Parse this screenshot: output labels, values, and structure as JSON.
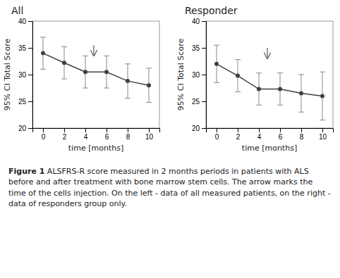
{
  "chart_data": [
    {
      "type": "line",
      "title": "All",
      "x": [
        0,
        2,
        4,
        6,
        8,
        10
      ],
      "series": [
        {
          "values": [
            34.0,
            32.2,
            30.5,
            30.5,
            28.8,
            28.0
          ],
          "error": [
            3.0,
            3.0,
            3.0,
            3.0,
            3.2,
            3.2
          ],
          "color": "#404040",
          "marker": "circle",
          "line_style": "solid"
        }
      ],
      "xlim": [
        -1,
        11
      ],
      "xticks": [
        0,
        2,
        4,
        6,
        8,
        10
      ],
      "ylim": [
        20,
        40
      ],
      "yticks": [
        20,
        25,
        30,
        35,
        40
      ],
      "xlabel": "time [months]",
      "ylabel": "95% CI Total Score",
      "grid": false,
      "annotations": [
        {
          "type": "arrow",
          "x": 4.8,
          "y_start": 35.5,
          "y_end": 33.5
        }
      ]
    },
    {
      "type": "line",
      "title": "Responder",
      "x": [
        0,
        2,
        4,
        6,
        8,
        10
      ],
      "series": [
        {
          "values": [
            32.0,
            29.8,
            27.3,
            27.3,
            26.5,
            26.0
          ],
          "error": [
            3.5,
            3.0,
            3.0,
            3.0,
            3.5,
            4.5
          ],
          "color": "#404040",
          "marker": "circle",
          "line_style": "solid"
        }
      ],
      "xlim": [
        -1,
        11
      ],
      "xticks": [
        0,
        2,
        4,
        6,
        8,
        10
      ],
      "ylim": [
        20,
        40
      ],
      "yticks": [
        20,
        25,
        30,
        35,
        40
      ],
      "xlabel": "time [months]",
      "ylabel": "95% CI Total Score",
      "grid": false,
      "annotations": [
        {
          "type": "arrow",
          "x": 4.8,
          "y_start": 35.0,
          "y_end": 33.0
        }
      ]
    }
  ],
  "caption": {
    "label": "Figure 1",
    "text": " ALSFRS-R score measured in 2 months periods in patients with ALS before and after treatment with bone marrow stem cells. The arrow marks the time of the cells injection. On the left - data of all measured patients, on the right - data of responders group only."
  }
}
